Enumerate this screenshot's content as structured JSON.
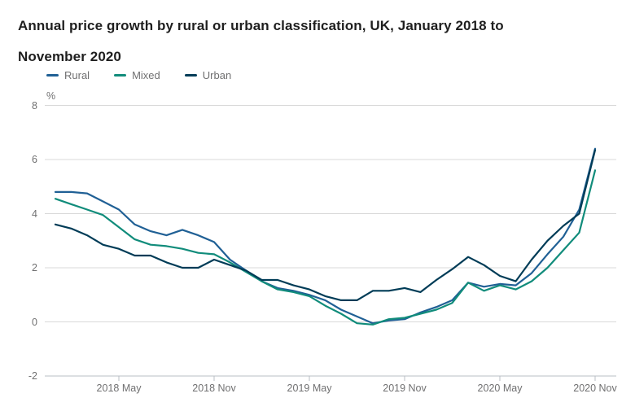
{
  "title": "Annual price growth by rural or urban classification, UK, January 2018 to November 2020",
  "colors": {
    "background": "#ffffff",
    "title_text": "#1f1f1f",
    "axis_text": "#707071",
    "gridline": "#d9d9d9",
    "axis_line": "#b9bfc4"
  },
  "chart_data": {
    "type": "line",
    "title": "Annual price growth by rural or urban classification, UK, January 2018 to November 2020",
    "unit_label": "%",
    "xlabel": "",
    "ylabel": "%",
    "grid": true,
    "legend_position": "top-left",
    "ylim": [
      -2,
      8
    ],
    "yticks": [
      8,
      6,
      4,
      2,
      0,
      -2
    ],
    "xticks": [
      {
        "index": 4,
        "label": "2018 May"
      },
      {
        "index": 10,
        "label": "2018 Nov"
      },
      {
        "index": 16,
        "label": "2019 May"
      },
      {
        "index": 22,
        "label": "2019 Nov"
      },
      {
        "index": 28,
        "label": "2020 May"
      },
      {
        "index": 34,
        "label": "2020 Nov"
      }
    ],
    "x": [
      "2018-01",
      "2018-02",
      "2018-03",
      "2018-04",
      "2018-05",
      "2018-06",
      "2018-07",
      "2018-08",
      "2018-09",
      "2018-10",
      "2018-11",
      "2018-12",
      "2019-01",
      "2019-02",
      "2019-03",
      "2019-04",
      "2019-05",
      "2019-06",
      "2019-07",
      "2019-08",
      "2019-09",
      "2019-10",
      "2019-11",
      "2019-12",
      "2020-01",
      "2020-02",
      "2020-03",
      "2020-04",
      "2020-05",
      "2020-06",
      "2020-07",
      "2020-08",
      "2020-09",
      "2020-10",
      "2020-11"
    ],
    "series": [
      {
        "name": "Rural",
        "color": "#206095",
        "values": [
          4.8,
          4.8,
          4.75,
          4.45,
          4.15,
          3.6,
          3.35,
          3.2,
          3.4,
          3.2,
          2.95,
          2.3,
          1.9,
          1.5,
          1.25,
          1.15,
          1.0,
          0.8,
          0.45,
          0.2,
          -0.05,
          0.05,
          0.1,
          0.35,
          0.55,
          0.8,
          1.45,
          1.3,
          1.4,
          1.35,
          1.8,
          2.5,
          3.15,
          4.15,
          6.4
        ]
      },
      {
        "name": "Mixed",
        "color": "#118C7B",
        "values": [
          4.55,
          4.35,
          4.15,
          3.95,
          3.5,
          3.05,
          2.85,
          2.8,
          2.7,
          2.55,
          2.5,
          2.2,
          1.85,
          1.5,
          1.2,
          1.1,
          0.95,
          0.6,
          0.3,
          -0.05,
          -0.1,
          0.1,
          0.15,
          0.3,
          0.45,
          0.7,
          1.45,
          1.15,
          1.35,
          1.2,
          1.5,
          2.0,
          2.65,
          3.3,
          5.6
        ]
      },
      {
        "name": "Urban",
        "color": "#003C57",
        "values": [
          3.6,
          3.45,
          3.2,
          2.85,
          2.7,
          2.45,
          2.45,
          2.2,
          2.0,
          2.0,
          2.3,
          2.1,
          1.9,
          1.55,
          1.55,
          1.35,
          1.2,
          0.95,
          0.8,
          0.8,
          1.15,
          1.15,
          1.25,
          1.1,
          1.55,
          1.95,
          2.4,
          2.1,
          1.7,
          1.5,
          2.3,
          3.0,
          3.55,
          4.0,
          6.35
        ]
      }
    ]
  }
}
